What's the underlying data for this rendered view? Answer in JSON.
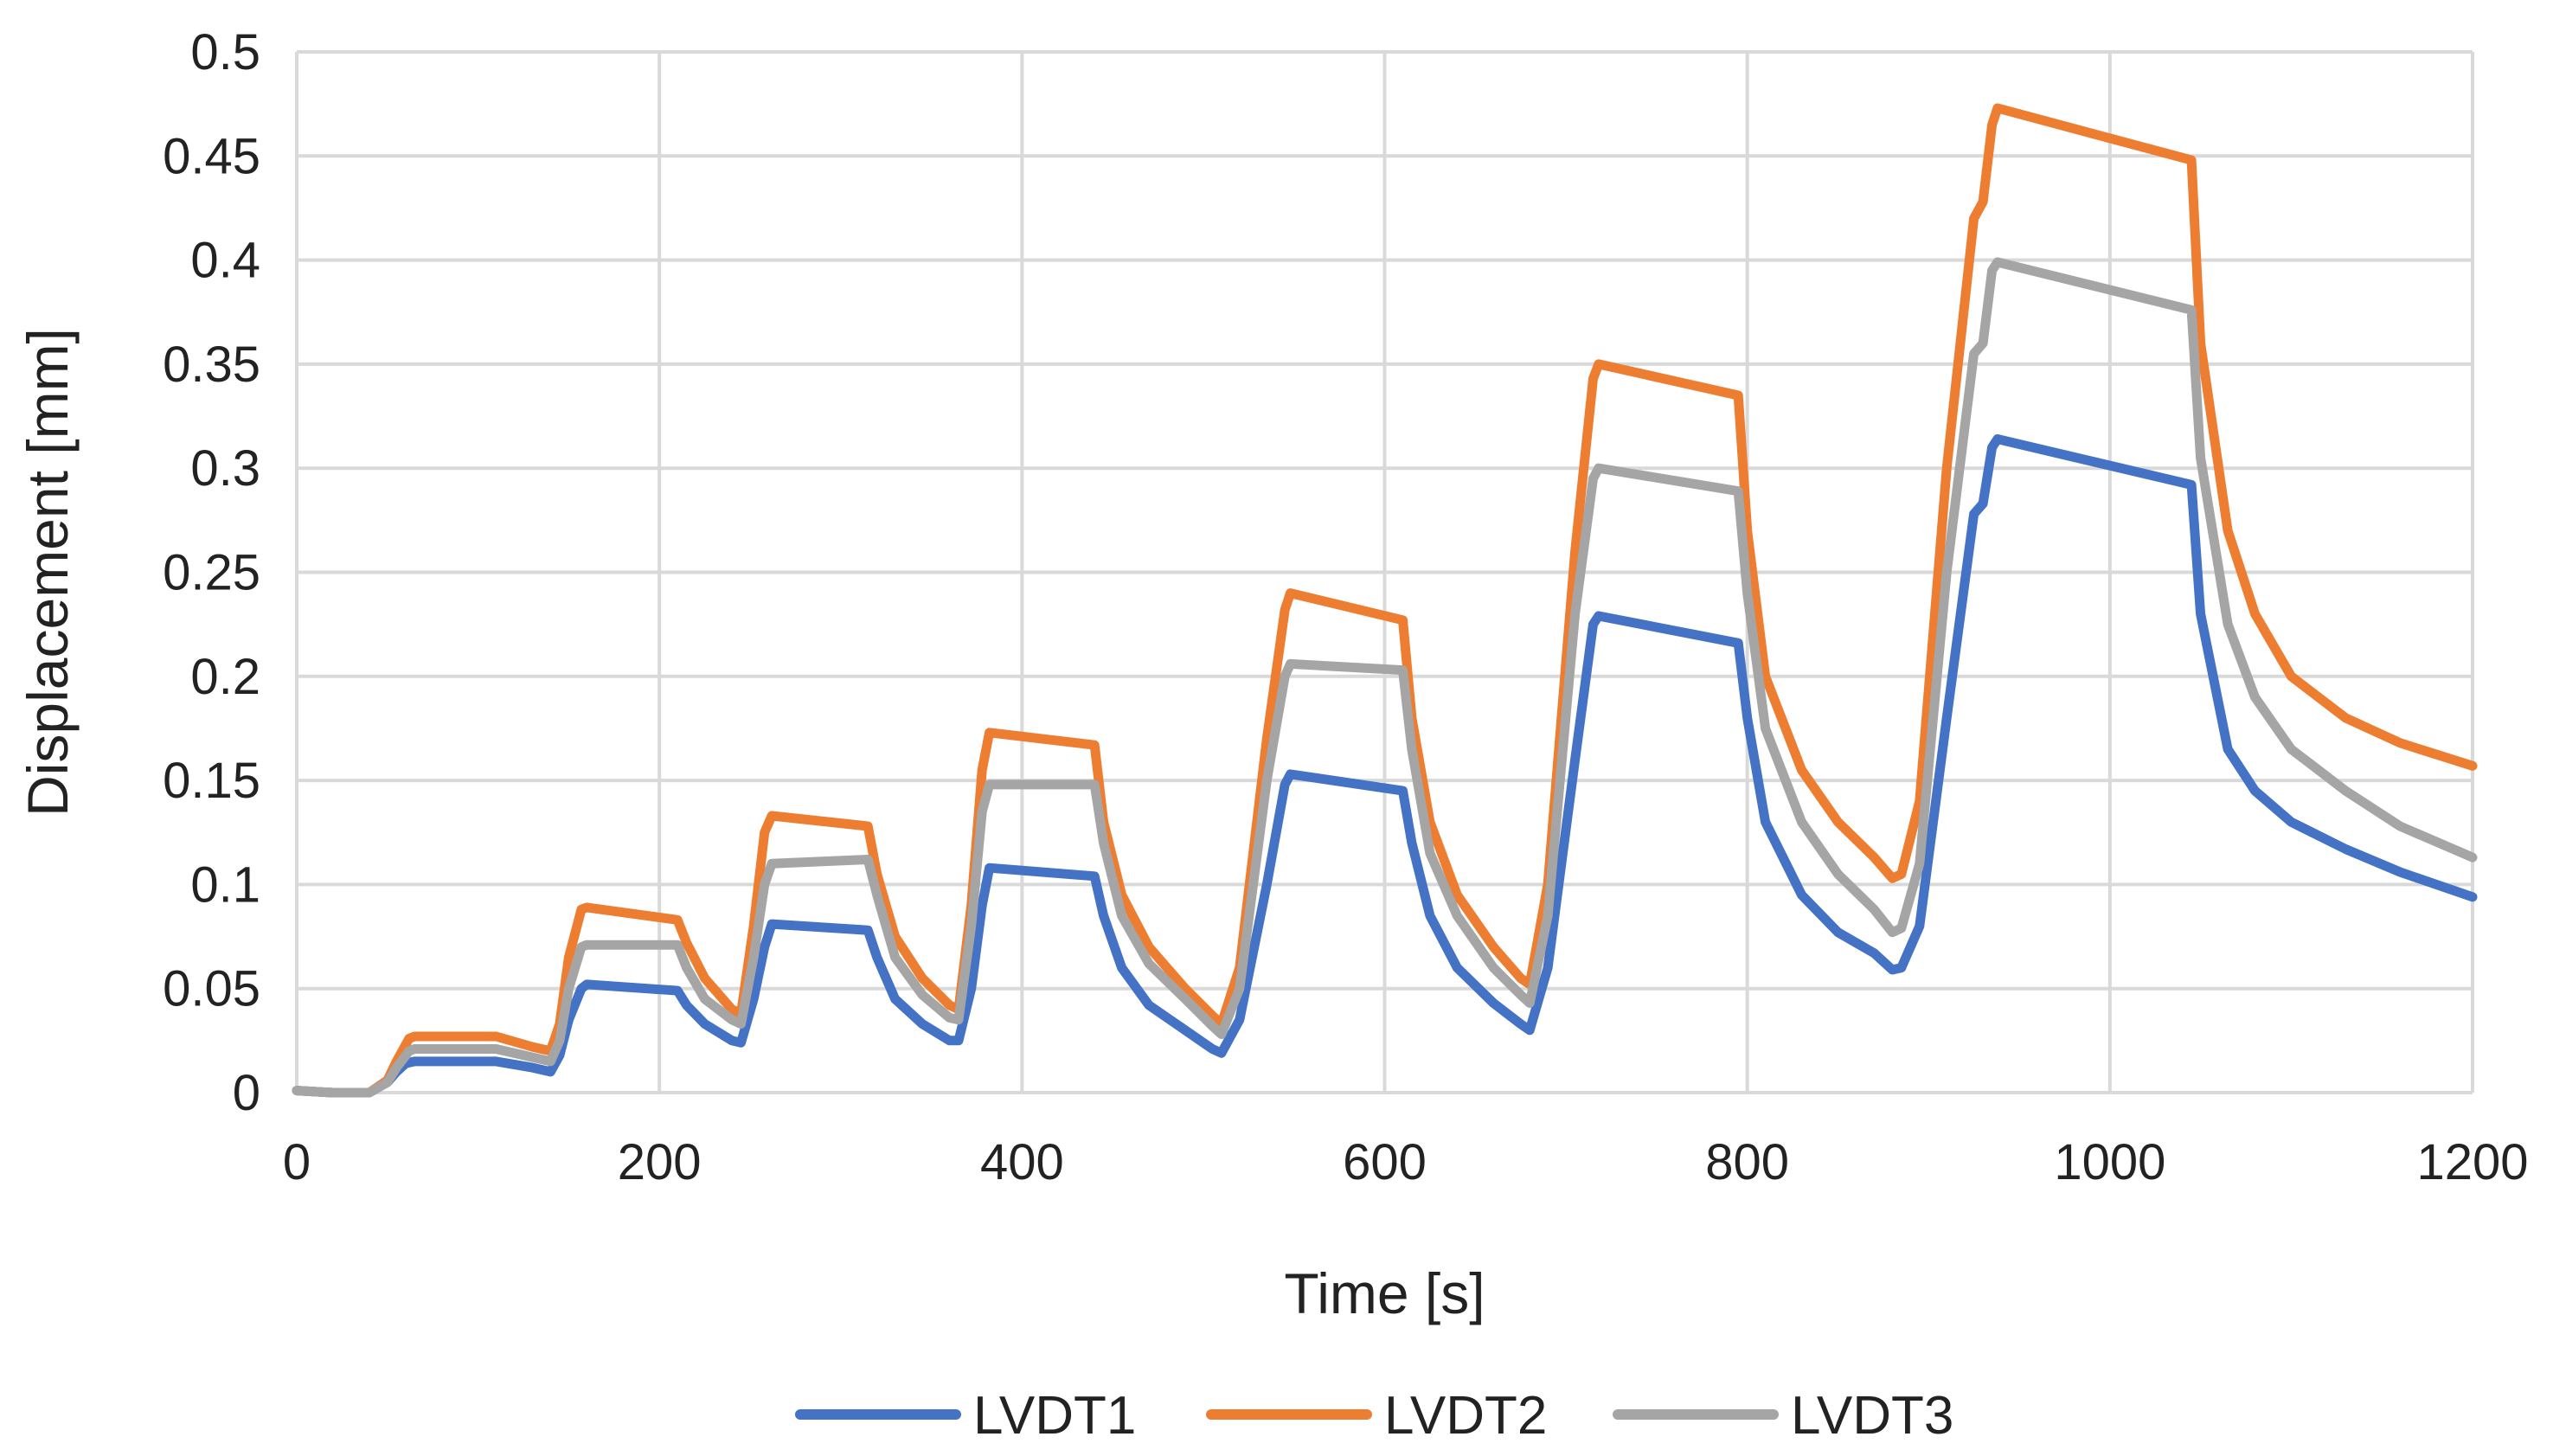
{
  "chart_data": {
    "type": "line",
    "title": "",
    "xlabel": "Time [s]",
    "ylabel": "Displacement [mm]",
    "xlim": [
      0,
      1200
    ],
    "ylim": [
      0,
      0.5
    ],
    "x_ticks": [
      0,
      200,
      400,
      600,
      800,
      1000,
      1200
    ],
    "x_tick_labels": [
      "0",
      "200",
      "400",
      "600",
      "800",
      "1000",
      "1200"
    ],
    "y_ticks": [
      0,
      0.05,
      0.1,
      0.15,
      0.2,
      0.25,
      0.3,
      0.35,
      0.4,
      0.45,
      0.5
    ],
    "y_tick_labels": [
      "0",
      "0.05",
      "0.1",
      "0.15",
      "0.2",
      "0.25",
      "0.3",
      "0.35",
      "0.4",
      "0.45",
      "0.5"
    ],
    "grid": true,
    "legend_position": "bottom",
    "series": [
      {
        "name": "LVDT1",
        "color": "#4472C4",
        "points": [
          [
            0,
            0.001
          ],
          [
            20,
            0
          ],
          [
            40,
            0
          ],
          [
            50,
            0.005
          ],
          [
            55,
            0.01
          ],
          [
            60,
            0.014
          ],
          [
            65,
            0.015
          ],
          [
            110,
            0.015
          ],
          [
            130,
            0.012
          ],
          [
            140,
            0.01
          ],
          [
            145,
            0.018
          ],
          [
            150,
            0.035
          ],
          [
            157,
            0.05
          ],
          [
            160,
            0.052
          ],
          [
            210,
            0.049
          ],
          [
            215,
            0.042
          ],
          [
            225,
            0.033
          ],
          [
            240,
            0.025
          ],
          [
            245,
            0.024
          ],
          [
            252,
            0.045
          ],
          [
            258,
            0.07
          ],
          [
            262,
            0.081
          ],
          [
            315,
            0.078
          ],
          [
            320,
            0.065
          ],
          [
            330,
            0.045
          ],
          [
            345,
            0.033
          ],
          [
            360,
            0.025
          ],
          [
            365,
            0.025
          ],
          [
            372,
            0.05
          ],
          [
            378,
            0.09
          ],
          [
            382,
            0.108
          ],
          [
            440,
            0.104
          ],
          [
            445,
            0.085
          ],
          [
            455,
            0.06
          ],
          [
            470,
            0.042
          ],
          [
            490,
            0.03
          ],
          [
            505,
            0.021
          ],
          [
            510,
            0.019
          ],
          [
            520,
            0.035
          ],
          [
            535,
            0.1
          ],
          [
            545,
            0.148
          ],
          [
            548,
            0.153
          ],
          [
            610,
            0.145
          ],
          [
            615,
            0.12
          ],
          [
            625,
            0.085
          ],
          [
            640,
            0.06
          ],
          [
            660,
            0.043
          ],
          [
            675,
            0.033
          ],
          [
            680,
            0.03
          ],
          [
            690,
            0.06
          ],
          [
            705,
            0.16
          ],
          [
            715,
            0.225
          ],
          [
            718,
            0.229
          ],
          [
            795,
            0.216
          ],
          [
            800,
            0.18
          ],
          [
            810,
            0.13
          ],
          [
            830,
            0.095
          ],
          [
            850,
            0.077
          ],
          [
            870,
            0.067
          ],
          [
            880,
            0.059
          ],
          [
            885,
            0.06
          ],
          [
            895,
            0.08
          ],
          [
            910,
            0.18
          ],
          [
            925,
            0.278
          ],
          [
            930,
            0.283
          ],
          [
            935,
            0.31
          ],
          [
            938,
            0.314
          ],
          [
            1045,
            0.292
          ],
          [
            1050,
            0.23
          ],
          [
            1065,
            0.165
          ],
          [
            1080,
            0.145
          ],
          [
            1100,
            0.13
          ],
          [
            1130,
            0.117
          ],
          [
            1160,
            0.106
          ],
          [
            1200,
            0.094
          ]
        ]
      },
      {
        "name": "LVDT2",
        "color": "#ED7D31",
        "points": [
          [
            0,
            0.001
          ],
          [
            20,
            0
          ],
          [
            40,
            0
          ],
          [
            50,
            0.006
          ],
          [
            55,
            0.015
          ],
          [
            62,
            0.026
          ],
          [
            65,
            0.027
          ],
          [
            110,
            0.027
          ],
          [
            130,
            0.022
          ],
          [
            140,
            0.02
          ],
          [
            145,
            0.033
          ],
          [
            150,
            0.065
          ],
          [
            157,
            0.088
          ],
          [
            160,
            0.089
          ],
          [
            210,
            0.083
          ],
          [
            215,
            0.072
          ],
          [
            225,
            0.055
          ],
          [
            240,
            0.04
          ],
          [
            245,
            0.038
          ],
          [
            252,
            0.08
          ],
          [
            258,
            0.125
          ],
          [
            262,
            0.133
          ],
          [
            315,
            0.128
          ],
          [
            320,
            0.105
          ],
          [
            330,
            0.075
          ],
          [
            345,
            0.055
          ],
          [
            360,
            0.042
          ],
          [
            365,
            0.04
          ],
          [
            372,
            0.09
          ],
          [
            378,
            0.155
          ],
          [
            382,
            0.173
          ],
          [
            440,
            0.167
          ],
          [
            445,
            0.13
          ],
          [
            455,
            0.095
          ],
          [
            470,
            0.07
          ],
          [
            490,
            0.05
          ],
          [
            505,
            0.037
          ],
          [
            510,
            0.033
          ],
          [
            520,
            0.06
          ],
          [
            535,
            0.17
          ],
          [
            545,
            0.232
          ],
          [
            548,
            0.24
          ],
          [
            610,
            0.227
          ],
          [
            615,
            0.18
          ],
          [
            625,
            0.13
          ],
          [
            640,
            0.095
          ],
          [
            660,
            0.07
          ],
          [
            675,
            0.055
          ],
          [
            680,
            0.052
          ],
          [
            690,
            0.1
          ],
          [
            705,
            0.26
          ],
          [
            715,
            0.343
          ],
          [
            718,
            0.35
          ],
          [
            795,
            0.335
          ],
          [
            800,
            0.27
          ],
          [
            810,
            0.2
          ],
          [
            830,
            0.155
          ],
          [
            850,
            0.13
          ],
          [
            870,
            0.113
          ],
          [
            880,
            0.103
          ],
          [
            885,
            0.105
          ],
          [
            895,
            0.14
          ],
          [
            910,
            0.3
          ],
          [
            925,
            0.42
          ],
          [
            930,
            0.428
          ],
          [
            935,
            0.465
          ],
          [
            938,
            0.473
          ],
          [
            1045,
            0.448
          ],
          [
            1050,
            0.36
          ],
          [
            1065,
            0.27
          ],
          [
            1080,
            0.23
          ],
          [
            1100,
            0.2
          ],
          [
            1130,
            0.18
          ],
          [
            1160,
            0.168
          ],
          [
            1200,
            0.157
          ]
        ]
      },
      {
        "name": "LVDT3",
        "color": "#A5A5A5",
        "points": [
          [
            0,
            0.001
          ],
          [
            20,
            0
          ],
          [
            40,
            0
          ],
          [
            50,
            0.005
          ],
          [
            55,
            0.012
          ],
          [
            62,
            0.02
          ],
          [
            65,
            0.021
          ],
          [
            110,
            0.021
          ],
          [
            130,
            0.017
          ],
          [
            140,
            0.015
          ],
          [
            145,
            0.025
          ],
          [
            150,
            0.05
          ],
          [
            157,
            0.07
          ],
          [
            160,
            0.071
          ],
          [
            210,
            0.071
          ],
          [
            215,
            0.06
          ],
          [
            225,
            0.045
          ],
          [
            240,
            0.035
          ],
          [
            245,
            0.033
          ],
          [
            252,
            0.065
          ],
          [
            258,
            0.1
          ],
          [
            262,
            0.11
          ],
          [
            315,
            0.112
          ],
          [
            320,
            0.095
          ],
          [
            330,
            0.065
          ],
          [
            345,
            0.047
          ],
          [
            360,
            0.036
          ],
          [
            365,
            0.035
          ],
          [
            372,
            0.08
          ],
          [
            378,
            0.135
          ],
          [
            382,
            0.148
          ],
          [
            440,
            0.148
          ],
          [
            445,
            0.12
          ],
          [
            455,
            0.085
          ],
          [
            470,
            0.062
          ],
          [
            490,
            0.045
          ],
          [
            505,
            0.032
          ],
          [
            510,
            0.028
          ],
          [
            520,
            0.05
          ],
          [
            535,
            0.15
          ],
          [
            545,
            0.2
          ],
          [
            548,
            0.206
          ],
          [
            610,
            0.203
          ],
          [
            615,
            0.165
          ],
          [
            625,
            0.115
          ],
          [
            640,
            0.085
          ],
          [
            660,
            0.06
          ],
          [
            675,
            0.047
          ],
          [
            680,
            0.043
          ],
          [
            690,
            0.085
          ],
          [
            705,
            0.23
          ],
          [
            715,
            0.295
          ],
          [
            718,
            0.3
          ],
          [
            795,
            0.289
          ],
          [
            800,
            0.24
          ],
          [
            810,
            0.175
          ],
          [
            830,
            0.13
          ],
          [
            850,
            0.105
          ],
          [
            870,
            0.088
          ],
          [
            880,
            0.077
          ],
          [
            885,
            0.079
          ],
          [
            895,
            0.11
          ],
          [
            910,
            0.25
          ],
          [
            925,
            0.355
          ],
          [
            930,
            0.36
          ],
          [
            935,
            0.395
          ],
          [
            938,
            0.399
          ],
          [
            1045,
            0.376
          ],
          [
            1050,
            0.305
          ],
          [
            1065,
            0.225
          ],
          [
            1080,
            0.19
          ],
          [
            1100,
            0.165
          ],
          [
            1130,
            0.145
          ],
          [
            1160,
            0.128
          ],
          [
            1200,
            0.113
          ]
        ]
      }
    ]
  }
}
